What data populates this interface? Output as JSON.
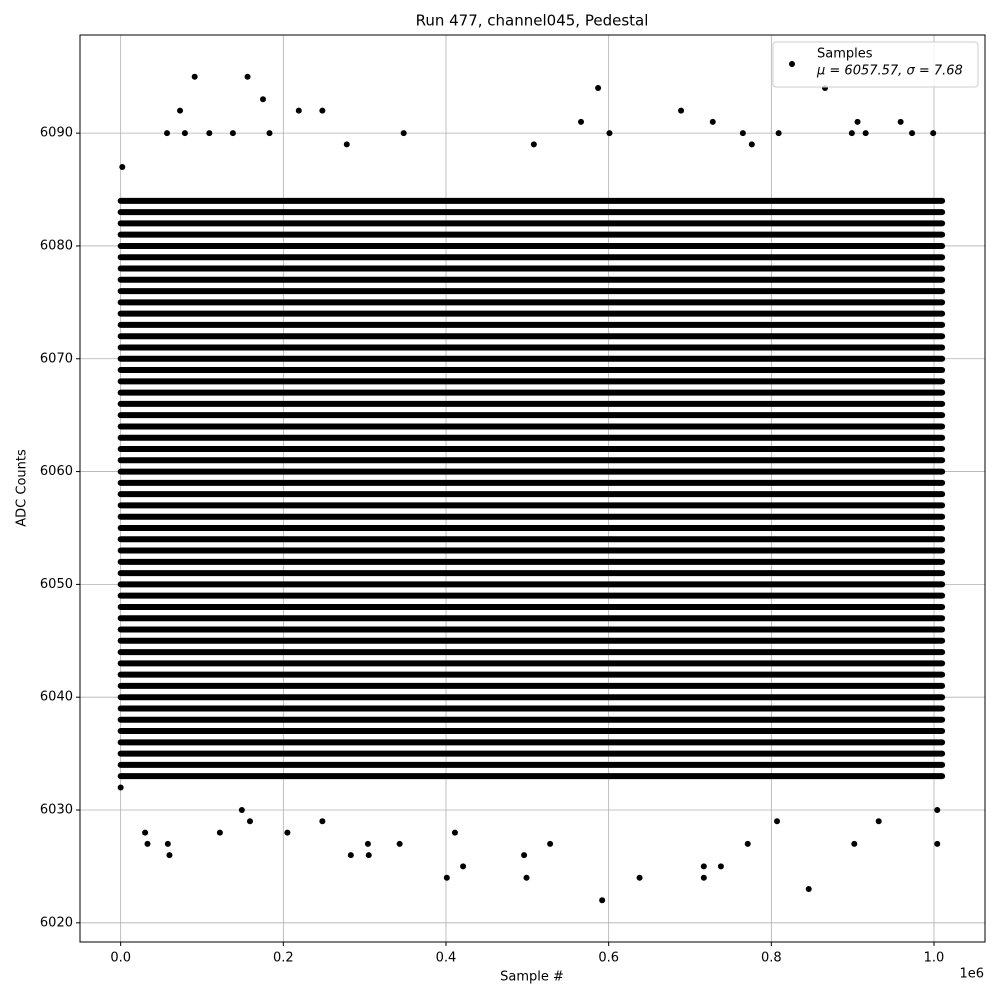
{
  "chart_data": {
    "type": "scatter",
    "title": "Run 477, channel045, Pedestal",
    "x_label": "Sample #",
    "y_label": "ADC Counts",
    "x_offset_label": "1e6",
    "xlim": [
      -50000,
      1062700
    ],
    "ylim": [
      6018.3,
      6098.7
    ],
    "xticks": [
      {
        "value": 0,
        "label": "0.0"
      },
      {
        "value": 200000,
        "label": "0.2"
      },
      {
        "value": 400000,
        "label": "0.4"
      },
      {
        "value": 600000,
        "label": "0.6"
      },
      {
        "value": 800000,
        "label": "0.8"
      },
      {
        "value": 1000000,
        "label": "1.0"
      }
    ],
    "yticks": [
      6020,
      6030,
      6040,
      6050,
      6060,
      6070,
      6080,
      6090
    ],
    "grid": true,
    "legend_position": "upper right",
    "series": [
      {
        "name": "Samples",
        "legend_note": "μ = 6057.57, σ = 7.68",
        "color": "#000000",
        "x": [
          91000,
          156000,
          175000,
          73000,
          219000,
          248000,
          587000,
          866000,
          566000,
          728000,
          906000,
          959000,
          689000,
          57000,
          79000,
          109000,
          138000,
          183000,
          348000,
          601000,
          765000,
          809000,
          899000,
          973000,
          999000,
          916000,
          2000,
          508000,
          776000,
          278000,
          0,
          30000,
          33000,
          60000,
          58000,
          122000,
          149000,
          159000,
          205000,
          248000,
          283000,
          304000,
          305000,
          343000,
          401000,
          421000,
          411000,
          496000,
          499000,
          528000,
          592000,
          638000,
          717000,
          717000,
          738000,
          771000,
          807000,
          846000,
          902000,
          932000,
          1004000,
          1004000
        ],
        "y": [
          6095,
          6095,
          6093,
          6092,
          6092,
          6092,
          6094,
          6094,
          6091,
          6091,
          6091,
          6091,
          6092,
          6090,
          6090,
          6090,
          6090,
          6090,
          6090,
          6090,
          6090,
          6090,
          6090,
          6090,
          6090,
          6090,
          6087,
          6089,
          6089,
          6089,
          6032,
          6028,
          6027,
          6026,
          6027,
          6028,
          6030,
          6029,
          6028,
          6029,
          6026,
          6027,
          6026,
          6027,
          6024,
          6025,
          6028,
          6026,
          6024,
          6027,
          6022,
          6024,
          6025,
          6024,
          6025,
          6027,
          6029,
          6023,
          6027,
          6029,
          6027,
          6030
        ]
      }
    ],
    "dense_band": {
      "x_range": [
        0,
        1010000
      ],
      "levels": [
        6033,
        6034,
        6035,
        6036,
        6037,
        6038,
        6039,
        6040,
        6041,
        6042,
        6043,
        6044,
        6045,
        6046,
        6047,
        6048,
        6049,
        6050,
        6051,
        6052,
        6053,
        6054,
        6055,
        6056,
        6057,
        6058,
        6059,
        6060,
        6061,
        6062,
        6063,
        6064,
        6065,
        6066,
        6067,
        6068,
        6069,
        6070,
        6071,
        6072,
        6073,
        6074,
        6075,
        6076,
        6077,
        6078,
        6079,
        6080,
        6081,
        6082,
        6083,
        6084
      ]
    }
  }
}
